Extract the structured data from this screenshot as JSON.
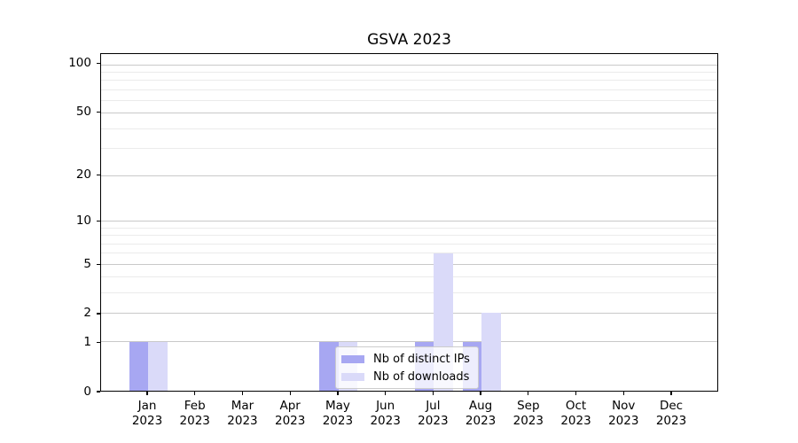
{
  "chart_data": {
    "type": "bar",
    "title": "GSVA 2023",
    "categories": [
      {
        "month": "Jan",
        "year": "2023"
      },
      {
        "month": "Feb",
        "year": "2023"
      },
      {
        "month": "Mar",
        "year": "2023"
      },
      {
        "month": "Apr",
        "year": "2023"
      },
      {
        "month": "May",
        "year": "2023"
      },
      {
        "month": "Jun",
        "year": "2023"
      },
      {
        "month": "Jul",
        "year": "2023"
      },
      {
        "month": "Aug",
        "year": "2023"
      },
      {
        "month": "Sep",
        "year": "2023"
      },
      {
        "month": "Oct",
        "year": "2023"
      },
      {
        "month": "Nov",
        "year": "2023"
      },
      {
        "month": "Dec",
        "year": "2023"
      }
    ],
    "series": [
      {
        "name": "Nb of distinct IPs",
        "color": "#a7a7f2",
        "values": [
          1,
          0,
          0,
          0,
          1,
          0,
          1,
          1,
          0,
          0,
          0,
          0
        ]
      },
      {
        "name": "Nb of downloads",
        "color": "#dadaf9",
        "values": [
          1,
          0,
          0,
          0,
          1,
          0,
          6,
          2,
          0,
          0,
          0,
          0
        ]
      }
    ],
    "xlabel": "",
    "ylabel": "",
    "yticks": [
      0,
      1,
      2,
      5,
      10,
      20,
      50,
      100
    ],
    "minor_yticks": [
      3,
      4,
      6,
      7,
      8,
      9,
      30,
      40,
      60,
      70,
      80,
      90
    ],
    "yscale": "log1p",
    "ylim": [
      0,
      116
    ],
    "grid": "both",
    "legend_position": "inside-bottom-center"
  }
}
